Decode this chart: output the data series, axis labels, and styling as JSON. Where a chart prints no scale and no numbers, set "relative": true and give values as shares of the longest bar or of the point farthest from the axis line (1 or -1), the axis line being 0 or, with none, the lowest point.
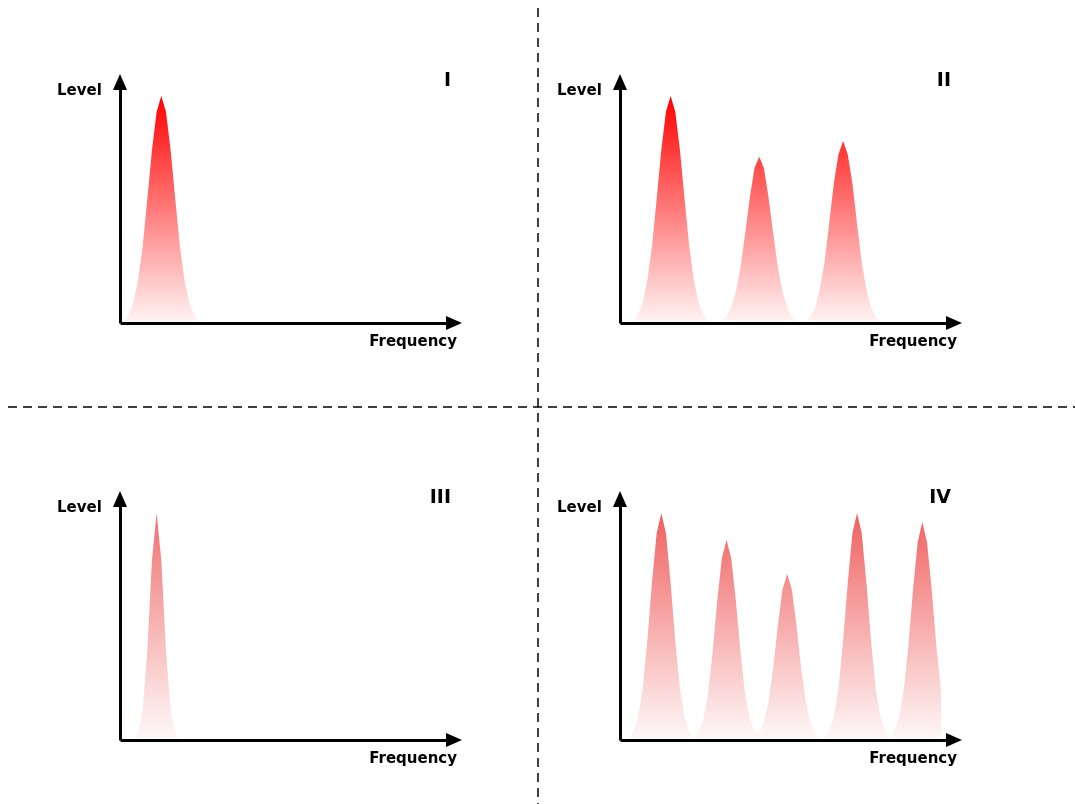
{
  "chart_data": [
    {
      "type": "area",
      "title": "I",
      "xlabel": "Frequency",
      "ylabel": "Level",
      "relative": true,
      "categories": [
        null,
        null,
        null,
        null,
        null,
        null,
        null,
        null,
        null,
        null,
        null,
        null,
        null,
        null,
        null,
        null,
        null,
        null,
        null,
        null,
        null,
        null,
        null,
        null,
        null,
        null,
        null,
        null,
        null,
        null,
        null,
        null,
        null,
        null,
        null,
        null,
        null,
        null,
        null,
        null,
        null,
        null,
        null,
        null,
        null,
        null,
        null,
        null,
        null,
        null,
        null,
        null,
        null,
        null,
        null,
        null,
        null,
        null,
        null,
        null,
        null,
        null,
        null,
        null,
        null,
        null,
        null,
        null,
        null
      ],
      "series": [
        {
          "color": "#ff0000",
          "values": [
            0,
            0.03,
            0.08,
            0.18,
            0.33,
            0.54,
            0.76,
            0.93,
            1,
            0.93,
            0.76,
            0.54,
            0.33,
            0.18,
            0.08,
            0.03,
            0,
            0,
            0,
            0,
            0,
            0,
            0,
            0,
            0,
            0,
            0,
            0,
            0,
            0,
            0,
            0,
            0,
            0,
            0,
            0,
            0,
            0,
            0,
            0,
            0,
            0,
            0,
            0,
            0,
            0,
            0,
            0,
            0,
            0,
            0,
            0,
            0,
            0,
            0,
            0,
            0,
            0,
            0,
            0,
            0,
            0,
            0,
            0,
            0,
            0,
            0,
            0,
            0
          ]
        }
      ]
    },
    {
      "type": "area",
      "title": "II",
      "xlabel": "Frequency",
      "ylabel": "Level",
      "relative": true,
      "categories": [
        null,
        null,
        null,
        null,
        null,
        null,
        null,
        null,
        null,
        null,
        null,
        null,
        null,
        null,
        null,
        null,
        null,
        null,
        null,
        null,
        null,
        null,
        null,
        null,
        null,
        null,
        null,
        null,
        null,
        null,
        null,
        null,
        null,
        null,
        null,
        null,
        null,
        null,
        null,
        null,
        null,
        null,
        null,
        null,
        null,
        null,
        null,
        null,
        null,
        null,
        null,
        null,
        null,
        null,
        null,
        null,
        null,
        null,
        null,
        null,
        null,
        null,
        null,
        null,
        null,
        null,
        null,
        null,
        null
      ],
      "series": [
        {
          "color": "#ff0000",
          "values": [
            0,
            0,
            0,
            0.03,
            0.08,
            0.18,
            0.33,
            0.54,
            0.76,
            0.93,
            1,
            0.93,
            0.76,
            0.54,
            0.33,
            0.18,
            0.08,
            0.03,
            0,
            0,
            0,
            0,
            0.02,
            0.06,
            0.13,
            0.24,
            0.39,
            0.55,
            0.68,
            0.73,
            0.68,
            0.55,
            0.39,
            0.24,
            0.13,
            0.06,
            0.02,
            0,
            0,
            0,
            0.02,
            0.06,
            0.14,
            0.26,
            0.43,
            0.61,
            0.74,
            0.8,
            0.74,
            0.61,
            0.43,
            0.26,
            0.14,
            0.06,
            0.02,
            0,
            0,
            0,
            0,
            0,
            0,
            0,
            0,
            0,
            0,
            0,
            0,
            0,
            0
          ]
        }
      ]
    },
    {
      "type": "area",
      "title": "III",
      "xlabel": "Frequency",
      "ylabel": "Level",
      "relative": true,
      "categories": [
        null,
        null,
        null,
        null,
        null,
        null,
        null,
        null,
        null,
        null,
        null,
        null,
        null,
        null,
        null,
        null,
        null,
        null,
        null,
        null,
        null,
        null,
        null,
        null,
        null,
        null,
        null,
        null,
        null,
        null,
        null,
        null,
        null,
        null,
        null,
        null,
        null,
        null,
        null,
        null,
        null,
        null,
        null,
        null,
        null,
        null,
        null,
        null,
        null,
        null,
        null,
        null,
        null,
        null,
        null,
        null,
        null,
        null,
        null,
        null,
        null,
        null,
        null,
        null,
        null,
        null,
        null,
        null,
        null
      ],
      "series": [
        {
          "color": "#f07070",
          "values": [
            0,
            0,
            0,
            0.02,
            0.12,
            0.39,
            0.79,
            1,
            0.79,
            0.39,
            0.12,
            0.02,
            0,
            0,
            0,
            0,
            0,
            0,
            0,
            0,
            0,
            0,
            0,
            0,
            0,
            0,
            0,
            0,
            0,
            0,
            0,
            0,
            0,
            0,
            0,
            0,
            0,
            0,
            0,
            0,
            0,
            0,
            0,
            0,
            0,
            0,
            0,
            0,
            0,
            0,
            0,
            0,
            0,
            0,
            0,
            0,
            0,
            0,
            0,
            0,
            0,
            0,
            0,
            0,
            0,
            0,
            0,
            0,
            0
          ]
        }
      ]
    },
    {
      "type": "area",
      "title": "IV",
      "xlabel": "Frequency",
      "ylabel": "Level",
      "relative": true,
      "categories": [
        null,
        null,
        null,
        null,
        null,
        null,
        null,
        null,
        null,
        null,
        null,
        null,
        null,
        null,
        null,
        null,
        null,
        null,
        null,
        null,
        null,
        null,
        null,
        null,
        null,
        null,
        null,
        null,
        null,
        null,
        null,
        null,
        null,
        null,
        null,
        null,
        null,
        null,
        null,
        null,
        null,
        null,
        null,
        null,
        null,
        null,
        null,
        null,
        null,
        null,
        null,
        null,
        null,
        null,
        null,
        null,
        null,
        null,
        null,
        null,
        null,
        null,
        null,
        null,
        null,
        null,
        null,
        null,
        null
      ],
      "series": [
        {
          "color": "#f06060",
          "values": [
            0,
            0,
            0.03,
            0.09,
            0.22,
            0.43,
            0.69,
            0.91,
            1,
            0.91,
            0.69,
            0.43,
            0.22,
            0.09,
            0.03,
            0,
            0.03,
            0.08,
            0.19,
            0.38,
            0.61,
            0.8,
            0.88,
            0.8,
            0.61,
            0.38,
            0.19,
            0.08,
            0.03,
            0.02,
            0.07,
            0.16,
            0.31,
            0.5,
            0.66,
            0.73,
            0.66,
            0.5,
            0.31,
            0.16,
            0.07,
            0.02,
            0,
            0,
            0.03,
            0.09,
            0.22,
            0.43,
            0.69,
            0.91,
            1,
            0.91,
            0.69,
            0.43,
            0.22,
            0.09,
            0.03,
            0,
            0.03,
            0.09,
            0.21,
            0.41,
            0.66,
            0.87,
            0.96,
            0.87,
            0.66,
            0.41,
            0.21
          ]
        }
      ]
    }
  ]
}
